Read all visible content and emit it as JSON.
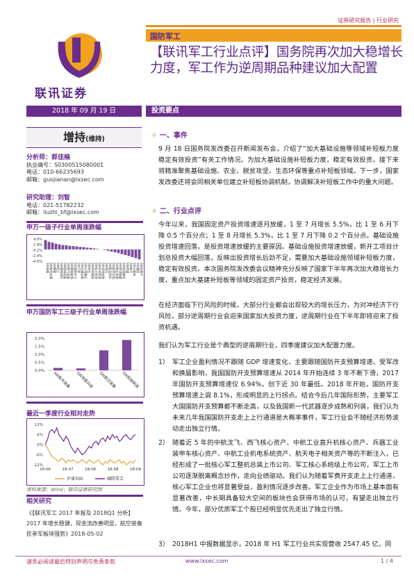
{
  "header": {
    "report_type": "证券研究报告 | 行业研究",
    "sector": "国防军工",
    "title": "【联讯军工行业点评】国务院再次加大稳增长力度，军工作为逆周期品种建议加大配置",
    "date": "2018 年 09 月 19 日",
    "key_points_label": "投资要点",
    "logo_text": "联讯证券"
  },
  "rating": {
    "main": "增持",
    "sub": "(维持)"
  },
  "analyst": {
    "label": "分析师：",
    "name": "郭佳楠",
    "cert": "执业编号：S0300515080001",
    "phone": "电话：010-66235693",
    "email": "邮箱：guojianan@lxsec.com"
  },
  "assistant": {
    "label": "研究助理：",
    "name": "刘智",
    "phone": "电话：021-51782232",
    "email": "邮箱：liuzhi_bf@lxsec.com"
  },
  "chart1": {
    "title": "申万一级子行业单周涨跌幅",
    "chart_data": {
      "type": "bar",
      "ylim": [
        -4.5,
        4.0
      ],
      "yticks": [
        "4.0%",
        "1.9%",
        "-0.2%",
        "-2.4%",
        "-4.5%"
      ],
      "categories": [
        "SW采掘",
        "SW有色金属",
        "SW钢铁",
        "SW化工",
        "SW建筑材料",
        "SW机械设备",
        "SW电气设备",
        "SW建筑装饰",
        "SW国防军工",
        "SW汽车",
        "SW交通运输",
        "SW公用事业",
        "SW综合",
        "SW纺织服装",
        "SW轻工制造",
        "SW农林牧渔",
        "SW非银金融",
        "SW银行",
        "SW食品饮料",
        "SW医药生物",
        "SW商业贸易",
        "SW家用电器",
        "SW休闲服务",
        "SW传媒",
        "SW电子",
        "SW计算机",
        "SW通信",
        "SW房地产"
      ],
      "values": [
        3.6,
        2.9,
        2.6,
        2.2,
        1.9,
        1.7,
        1.6,
        1.4,
        1.3,
        1.2,
        1.0,
        0.9,
        0.7,
        0.6,
        0.4,
        0.2,
        0.0,
        -0.2,
        -0.5,
        -0.8,
        -1.1,
        -1.4,
        -1.8,
        -2.1,
        -2.5,
        -2.9,
        -3.3,
        -3.8
      ]
    }
  },
  "chart2": {
    "title": "申万国防军工三级子行业单周涨跌幅",
    "chart_data": {
      "type": "bar",
      "ylim": [
        0,
        2.0
      ],
      "yticks": [
        "2.0%",
        "1.5%",
        "1.0%",
        "0.5%",
        "0.0%"
      ],
      "categories": [
        "SW航天装备",
        "SW地面兵装",
        "SW航空装备",
        "SW船舶制造"
      ],
      "values": [
        0.15,
        0.12,
        1.25,
        1.9
      ]
    }
  },
  "chart3": {
    "title": "最近一季度行业相对走势",
    "chart_data": {
      "type": "line",
      "yticks": [
        "12%",
        "6%",
        "0%",
        "-6%",
        "-12%"
      ],
      "ylim": [
        -12,
        12
      ],
      "x_labels": [
        "18-06",
        "18-07",
        "18-08",
        "18-08",
        "18-09"
      ],
      "series": [
        {
          "name": "沪深300",
          "color": "#e8a33a",
          "values": [
            0,
            -2,
            -5,
            -7,
            -8,
            -9,
            -10,
            -8,
            -9,
            -11,
            -9,
            -10,
            -9,
            -10,
            -11,
            -10,
            -9,
            -10,
            -11,
            -9,
            -10,
            -11,
            -10,
            -9,
            -11,
            -12,
            -10,
            -11,
            -9,
            -10,
            -11,
            -10,
            -9,
            -11,
            -10,
            -12,
            -11,
            -10,
            -11,
            -9
          ]
        },
        {
          "name": "国防军工",
          "color": "#6a2d8c",
          "values": [
            0,
            3,
            8,
            9,
            7,
            10,
            6,
            4,
            2,
            5,
            3,
            -1,
            -3,
            -5,
            -2,
            -4,
            -6,
            -5,
            -3,
            -1,
            -2,
            1,
            2,
            0,
            3,
            4,
            2,
            5,
            3,
            6,
            4,
            5,
            2,
            3,
            5,
            6,
            4,
            3,
            5,
            6
          ]
        }
      ]
    }
  },
  "source_note": "资料来源：Wind，联讯证券研究院",
  "related": {
    "title": "相关研究",
    "item": "《【联讯军工 2017 年报及 2018Q1 分析】2017 年增长稳健，现金流改善明显，航空装备民参军板块强势》2018-05-02"
  },
  "sections": {
    "s1_title": "一、事件",
    "s1_p1": "9 月 18 日国务院发改委召开新闻发布会，介绍了“加大基础设施等领域补短板力度 稳定有效投资”有关工作情况。为加大基础设施补短板力度，稳定有效投资，接下来将精准聚焦基础设施、农业、脱贫攻坚、生态环保等重点补短板领域。下一步，国家发改委还将会同相关单位建立补短板协调机制，协调解决补短板工作中的重大问题。",
    "s2_title": "二、行业点评",
    "s2_p1": "今年以来，我国固定资产投资增速逐月放缓，1 至 7 月增长 5.5%，比 1 至 6 月下降 0.5 个百分点；1 至 8 月增长 5.3%，比 1 至 7 月下降 0.2 个百分点。基础设施投资增速回落，是投资增速放缓的主要原因。基础设施投资增速放缓，新开工项目计划总投资大幅回落，反映出投资增长后劲不足，需要加大基础设施领域补短板力度，稳定有效投资。本次国务院发改委会议精神充分反映了国家下半年再次加大稳增长力度，重点加大基建补短板等领域的固定资产投资，稳定经济发展。",
    "s2_p2": "在经济面临下行风险的时候，大部分行业都会出现较大的增长压力，为对冲经济下行风险，部分逆周期行业会迎来国家加大投资力度，逆周期行业在下半年即将迎来了投资机遇。",
    "s2_p3": "我们认为军工行业是个典型的逆周期行业，四季度建议加大配置力度。",
    "items": [
      {
        "num": "1）",
        "text": "军工企业盈利情况不跟随 GDP 增速变化，主要跟随国防开支预算增速。受军改和换届影响，我国国防开支预算增速从 2014 年开始连续 3 年不断下滑，2017 年国防开支预算增速仅 6.94%，创下近 30 年最低。2018 年开始，国防开支预算增速上调 8.1%，形成明显的上行拐点。结合今后几年国际形势，主要军工大国国防开支预算都不断走高，以及我国新一代武器逐步成熟和列装，我们认为未来几年我国国防开支走上上行通道是大概率事件，军工行业会不随经济形势波动走出独立行情。"
      },
      {
        "num": "2）",
        "text": "随着近 5 年的中航沈飞、西飞核心资产、中航工业直升机核心资产、兵器工业装甲车核心资产、中航工业机电系统资产、航天电子相关资产等的不断注入，已经形成了一批核心军工整机总装上市公司、军工核心系统级上市公司，军工上市公司逐渐脱离概念炒作，走向业绩驱动。我们认为随着军费开支走上上行通道，核心军工企业也将显著受益，盈利情况逐步改善。军工企业作为市场上基本面有显著改善，中长期具备较大空间的板块也会获得市场的认可，有望走出独立行情。今年，部分优质军工个股已经明显优先走出了独立行情。"
      },
      {
        "num": "3）",
        "text": "2018H1 中报数据显示，2018 年 H1 军工行业共实现营收 2547.45 亿，同"
      }
    ]
  },
  "footer": {
    "disclaimer": "请务必阅读最后特别声明与免责条款",
    "url": "www.lxsec.com",
    "page": "1 / 4"
  }
}
